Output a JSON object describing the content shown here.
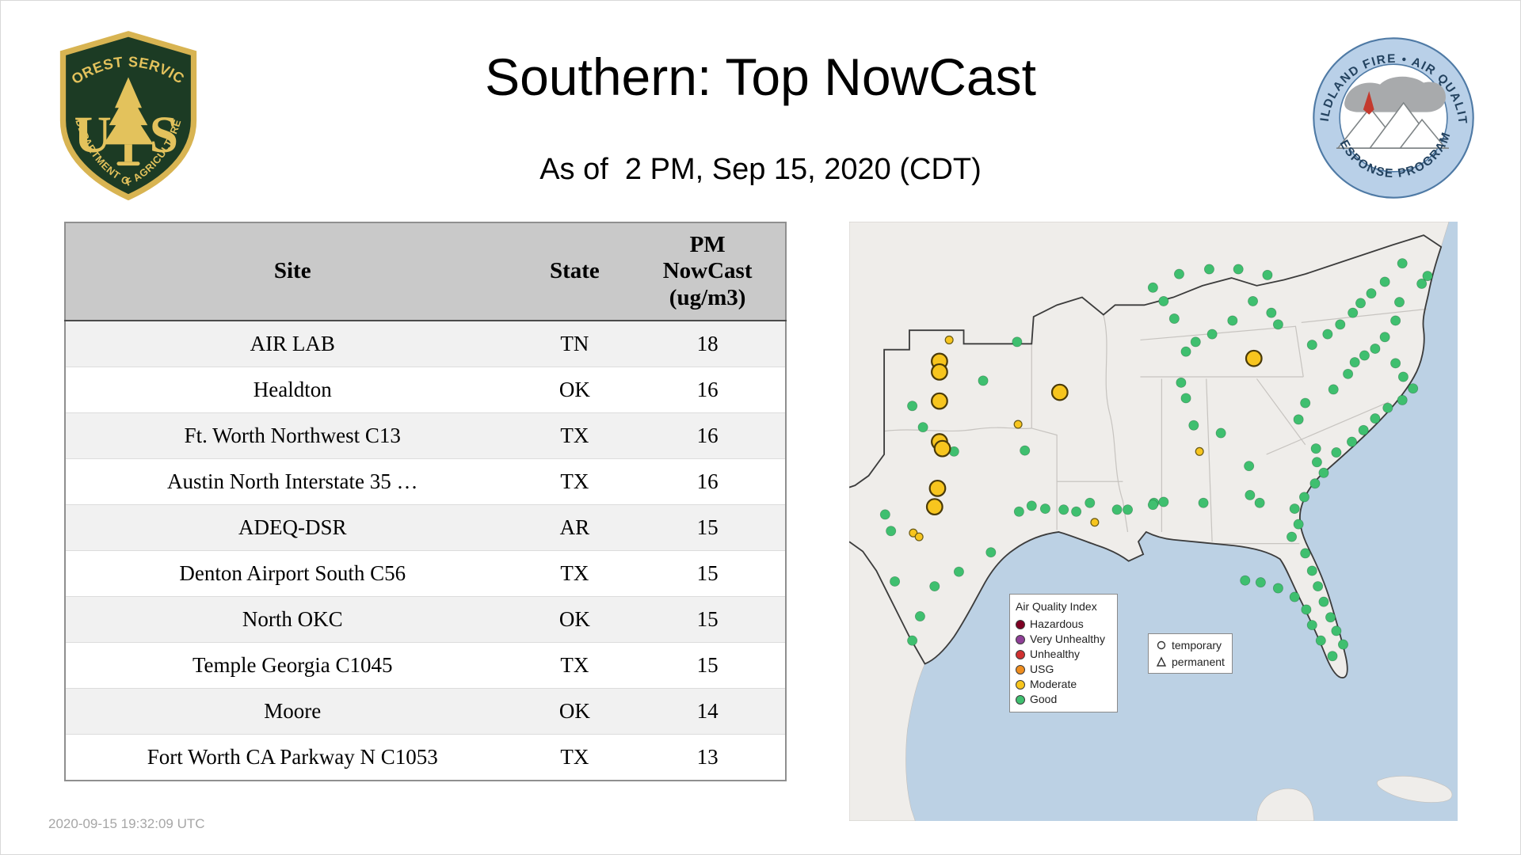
{
  "meta": {
    "title": "Southern: Top NowCast",
    "subtitle": "As of  2 PM, Sep 15, 2020 (CDT)",
    "footer_timestamp": "2020-09-15 19:32:09 UTC"
  },
  "logos": {
    "usfs": {
      "arc_top": "FOREST SERVICE",
      "letter_left": "U",
      "letter_right": "S",
      "arc_bottom": "DEPARTMENT OF AGRICULTURE"
    },
    "wfaqrp": {
      "arc_top": "WILDLAND FIRE • AIR QUALITY",
      "arc_bottom": "RESPONSE PROGRAM"
    }
  },
  "table": {
    "headers": [
      "Site",
      "State",
      "PM\nNowCast\n(ug/m3)"
    ],
    "rows": [
      [
        "AIR LAB",
        "TN",
        "18"
      ],
      [
        "Healdton",
        "OK",
        "16"
      ],
      [
        "Ft. Worth Northwest C13",
        "TX",
        "16"
      ],
      [
        "Austin North Interstate 35 …",
        "TX",
        "16"
      ],
      [
        "ADEQ-DSR",
        "AR",
        "15"
      ],
      [
        "Denton Airport South C56",
        "TX",
        "15"
      ],
      [
        "North OKC",
        "OK",
        "15"
      ],
      [
        "Temple Georgia C1045",
        "TX",
        "15"
      ],
      [
        "Moore",
        "OK",
        "14"
      ],
      [
        "Fort Worth CA Parkway N C1053",
        "TX",
        "13"
      ]
    ]
  },
  "map": {
    "legend": {
      "title": "Air Quality Index",
      "items": [
        {
          "label": "Hazardous",
          "color": "#7e0023"
        },
        {
          "label": "Very Unhealthy",
          "color": "#8f3f97"
        },
        {
          "label": "Unhealthy",
          "color": "#d03030"
        },
        {
          "label": "USG",
          "color": "#ef8d1e"
        },
        {
          "label": "Moderate",
          "color": "#f7c51e"
        },
        {
          "label": "Good",
          "color": "#3fbf6f"
        }
      ]
    },
    "marker_legend": {
      "temporary": "temporary",
      "permanent": "permanent"
    },
    "markers": {
      "good": [
        [
          65,
          190
        ],
        [
          76,
          212
        ],
        [
          108,
          237
        ],
        [
          173,
          124
        ],
        [
          138,
          164
        ],
        [
          181,
          236
        ],
        [
          188,
          293
        ],
        [
          234,
          299
        ],
        [
          248,
          290
        ],
        [
          276,
          297
        ],
        [
          314,
          290
        ],
        [
          324,
          289
        ],
        [
          365,
          290
        ],
        [
          355,
          210
        ],
        [
          347,
          182
        ],
        [
          342,
          166
        ],
        [
          383,
          218
        ],
        [
          412,
          252
        ],
        [
          413,
          282
        ],
        [
          423,
          290
        ],
        [
          456,
          325
        ],
        [
          482,
          248
        ],
        [
          481,
          234
        ],
        [
          463,
          204
        ],
        [
          470,
          187
        ],
        [
          499,
          173
        ],
        [
          514,
          157
        ],
        [
          521,
          145
        ],
        [
          531,
          138
        ],
        [
          542,
          131
        ],
        [
          552,
          119
        ],
        [
          563,
          102
        ],
        [
          567,
          83
        ],
        [
          590,
          64
        ],
        [
          596,
          56
        ],
        [
          570,
          43
        ],
        [
          552,
          62
        ],
        [
          538,
          74
        ],
        [
          527,
          84
        ],
        [
          519,
          94
        ],
        [
          506,
          106
        ],
        [
          493,
          116
        ],
        [
          477,
          127
        ],
        [
          442,
          106
        ],
        [
          435,
          94
        ],
        [
          416,
          82
        ],
        [
          395,
          102
        ],
        [
          374,
          116
        ],
        [
          357,
          124
        ],
        [
          347,
          134
        ],
        [
          335,
          100
        ],
        [
          324,
          82
        ],
        [
          313,
          68
        ],
        [
          340,
          54
        ],
        [
          371,
          49
        ],
        [
          401,
          49
        ],
        [
          431,
          55
        ],
        [
          563,
          146
        ],
        [
          571,
          160
        ],
        [
          581,
          172
        ],
        [
          570,
          184
        ],
        [
          555,
          192
        ],
        [
          542,
          203
        ],
        [
          530,
          215
        ],
        [
          518,
          227
        ],
        [
          502,
          238
        ],
        [
          489,
          259
        ],
        [
          480,
          270
        ],
        [
          469,
          284
        ],
        [
          459,
          296
        ],
        [
          463,
          312
        ],
        [
          470,
          342
        ],
        [
          477,
          360
        ],
        [
          483,
          376
        ],
        [
          489,
          392
        ],
        [
          496,
          408
        ],
        [
          502,
          422
        ],
        [
          509,
          436
        ],
        [
          498,
          448
        ],
        [
          486,
          432
        ],
        [
          477,
          416
        ],
        [
          471,
          400
        ],
        [
          459,
          387
        ],
        [
          442,
          378
        ],
        [
          424,
          372
        ],
        [
          408,
          370
        ],
        [
          313,
          292
        ],
        [
          287,
          297
        ],
        [
          221,
          297
        ],
        [
          202,
          296
        ],
        [
          175,
          299
        ],
        [
          146,
          341
        ],
        [
          113,
          361
        ],
        [
          88,
          376
        ],
        [
          73,
          407
        ],
        [
          65,
          432
        ],
        [
          47,
          371
        ],
        [
          43,
          319
        ],
        [
          37,
          302
        ]
      ],
      "moderate_large": [
        [
          93,
          144
        ],
        [
          93,
          155
        ],
        [
          93,
          185
        ],
        [
          217,
          176
        ],
        [
          93,
          227
        ],
        [
          96,
          234
        ],
        [
          91,
          275
        ],
        [
          88,
          294
        ],
        [
          417,
          141
        ]
      ],
      "moderate_small": [
        [
          103,
          122
        ],
        [
          174,
          209
        ],
        [
          253,
          310
        ],
        [
          361,
          237
        ],
        [
          66,
          321
        ],
        [
          72,
          325
        ]
      ]
    }
  },
  "chart_data": {
    "type": "table",
    "title": "Southern: Top NowCast",
    "subtitle": "As of  2 PM, Sep 15, 2020 (CDT)",
    "columns": [
      "Site",
      "State",
      "PM NowCast (ug/m3)"
    ],
    "rows": [
      [
        "AIR LAB",
        "TN",
        18
      ],
      [
        "Healdton",
        "OK",
        16
      ],
      [
        "Ft. Worth Northwest C13",
        "TX",
        16
      ],
      [
        "Austin North Interstate 35 …",
        "TX",
        16
      ],
      [
        "ADEQ-DSR",
        "AR",
        15
      ],
      [
        "Denton Airport South C56",
        "TX",
        15
      ],
      [
        "North OKC",
        "OK",
        15
      ],
      [
        "Temple Georgia C1045",
        "TX",
        15
      ],
      [
        "Moore",
        "OK",
        14
      ],
      [
        "Fort Worth CA Parkway N C1053",
        "TX",
        13
      ]
    ],
    "map_summary": {
      "aqi_categories": [
        "Hazardous",
        "Very Unhealthy",
        "Unhealthy",
        "USG",
        "Moderate",
        "Good"
      ],
      "visible_counts": {
        "Good": 99,
        "Moderate": 15
      }
    }
  }
}
